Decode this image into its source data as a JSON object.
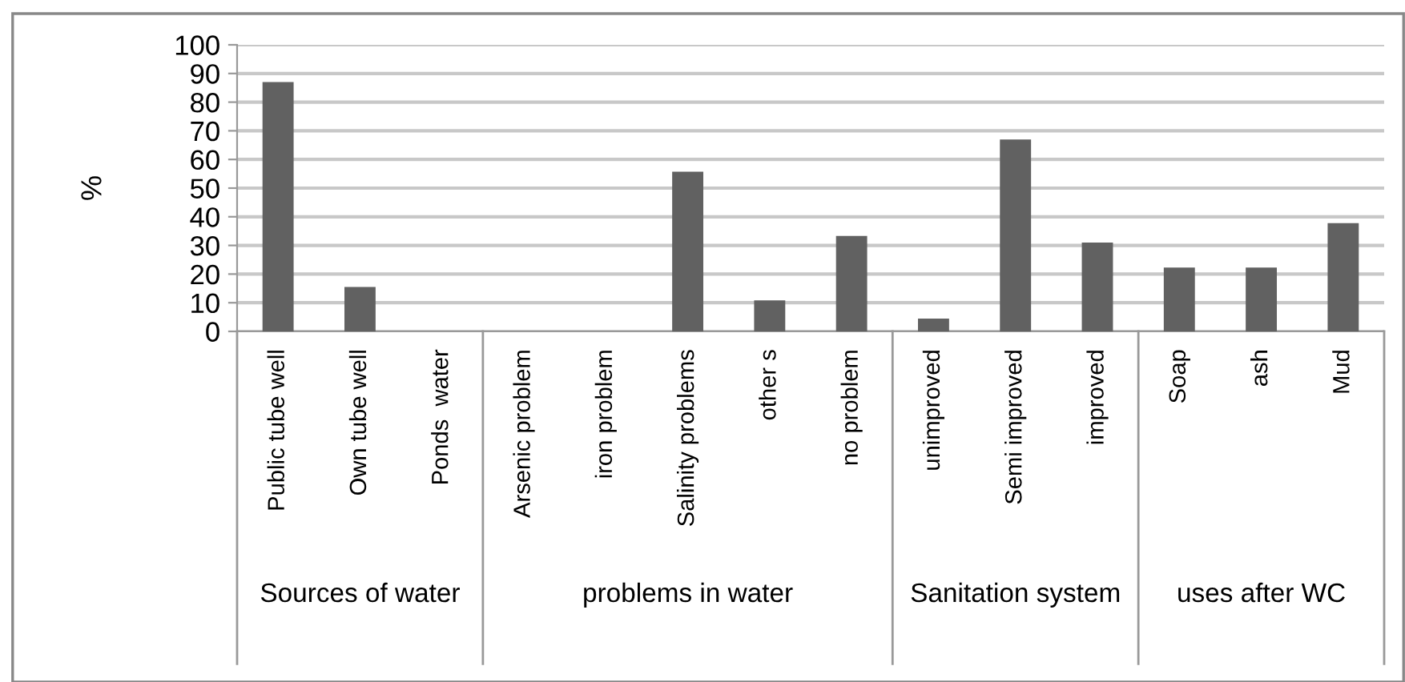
{
  "chart_data": {
    "type": "bar",
    "ylabel": "%",
    "categories": [
      "Public tube well",
      "Own tube well",
      "Ponds  water",
      "Arsenic problem",
      "iron problem",
      "Salinity problems",
      "other s",
      "no problem",
      "unimproved",
      "Semi improved",
      "improved",
      "Soap",
      "ash",
      "Mud"
    ],
    "values": [
      87,
      15.5,
      0,
      0,
      0,
      55.7,
      10.8,
      33.3,
      4.5,
      67,
      31,
      22.3,
      22.3,
      37.8
    ],
    "color": "#616161",
    "ylim": [
      0,
      100
    ],
    "yticks": [
      0,
      10,
      20,
      30,
      40,
      50,
      60,
      70,
      80,
      90,
      100
    ],
    "grid": "y",
    "annotations": [
      "Sources of water",
      "problems in water",
      "Sanitation system",
      "uses after WC"
    ]
  }
}
